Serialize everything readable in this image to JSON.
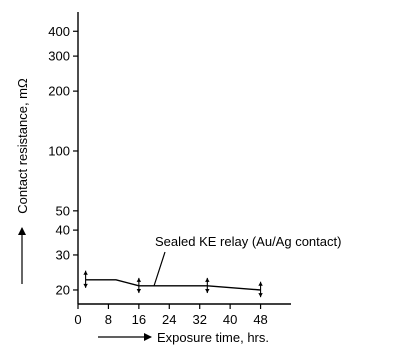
{
  "chart_data": {
    "type": "line",
    "title": "",
    "xlabel": "Exposure time, hrs.",
    "ylabel": "Contact resistance, mΩ",
    "y_scale": "log",
    "xlim": [
      0,
      56
    ],
    "ylim": [
      17,
      500
    ],
    "x_ticks": [
      0,
      8,
      16,
      24,
      32,
      40,
      48
    ],
    "x_tick_labels": [
      "0",
      "8",
      "16",
      "24",
      "32",
      "40",
      "48"
    ],
    "y_ticks": [
      20,
      30,
      40,
      50,
      100,
      200,
      300,
      400
    ],
    "y_tick_labels": [
      "20",
      "30",
      "40",
      "50",
      "100",
      "200",
      "300",
      "400"
    ],
    "grid": false,
    "annotation": "Sealed KE relay (Au/Ag contact)",
    "series": [
      {
        "x": [
          2,
          10,
          16,
          34,
          48
        ],
        "y": [
          22.5,
          22.5,
          21,
          21,
          20
        ],
        "error_bars": [
          {
            "x": 2,
            "low": 20.5,
            "high": 25
          },
          {
            "x": 16,
            "low": 19.3,
            "high": 23
          },
          {
            "x": 34,
            "low": 19.3,
            "high": 23
          },
          {
            "x": 48,
            "low": 18.4,
            "high": 22
          }
        ]
      }
    ]
  }
}
